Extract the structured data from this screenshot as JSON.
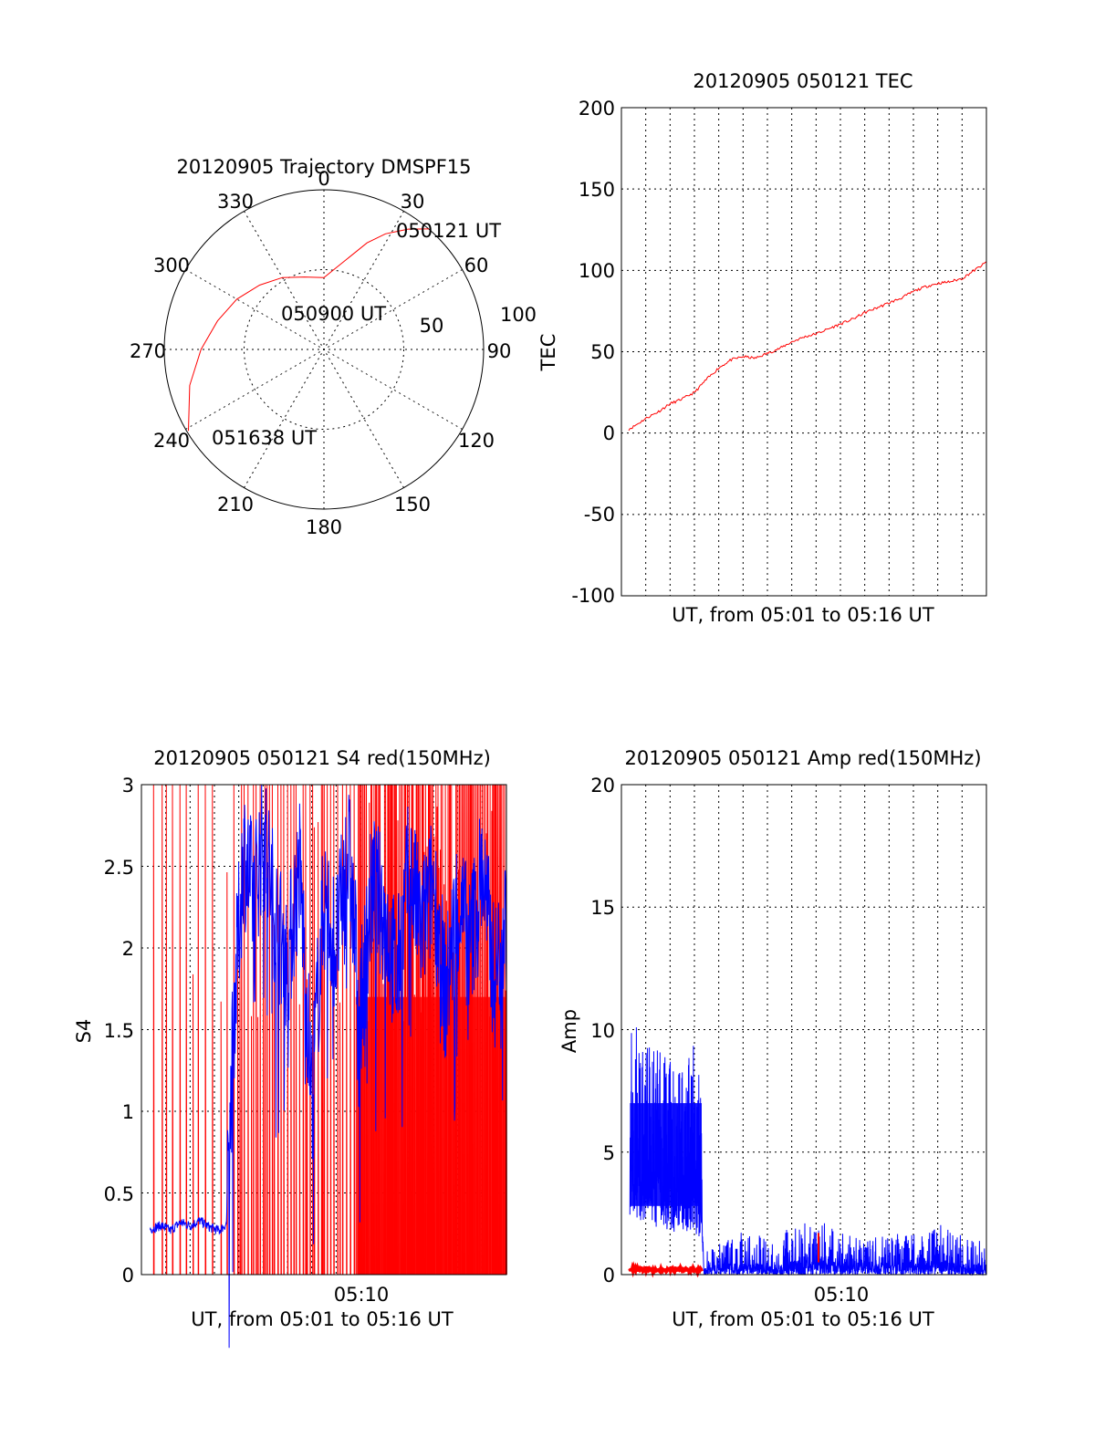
{
  "colors": {
    "red": "#ff0000",
    "blue": "#0000ff",
    "axes": "#000000",
    "background": "#ffffff"
  },
  "chart_data": [
    {
      "type": "polar",
      "title": "20120905 Trajectory DMSPF15",
      "azimuth_labels": [
        "0",
        "30",
        "60",
        "90",
        "120",
        "150",
        "180",
        "210",
        "240",
        "270",
        "300",
        "330"
      ],
      "radial_labels": [
        "50",
        "100"
      ],
      "rlim": [
        0,
        100
      ],
      "grid": true,
      "series": [
        {
          "color": "red",
          "azimuth_deg": [
            41,
            35,
            28,
            22,
            0,
            345,
            330,
            315,
            300,
            285,
            270,
            255,
            239
          ],
          "radius": [
            100,
            92,
            82,
            72,
            45,
            47,
            52,
            57,
            63,
            69,
            77,
            87,
            99
          ]
        }
      ],
      "annotations": [
        {
          "text": "050121 UT",
          "azimuth_deg": 41,
          "radius": 100
        },
        {
          "text": "050900 UT",
          "azimuth_deg": 0,
          "radius": 45
        },
        {
          "text": "051638 UT",
          "azimuth_deg": 239,
          "radius": 99
        }
      ]
    },
    {
      "type": "line",
      "title": "20120905 050121 TEC",
      "xlabel": "UT, from 05:01 to 05:16 UT",
      "ylabel": "TEC",
      "ylim": [
        -100,
        200
      ],
      "yticks": [
        "200",
        "150",
        "100",
        "50",
        "0",
        "-50",
        "-100"
      ],
      "xlim": [
        0,
        15
      ],
      "x_unit": "minutes after 05:01 UT",
      "grid": true,
      "series": [
        {
          "color": "red",
          "x": [
            0,
            0.5,
            1,
            1.5,
            2,
            2.5,
            3,
            3.5,
            4,
            4.5,
            5,
            5.5,
            6,
            6.5,
            7,
            7.5,
            8,
            8.5,
            9,
            9.5,
            10,
            10.5,
            11,
            11.5,
            12,
            12.5,
            13,
            13.5,
            14,
            14.5,
            15
          ],
          "values": [
            0,
            4,
            9,
            13,
            18,
            21,
            25,
            33,
            40,
            45,
            47,
            46,
            49,
            52,
            56,
            59,
            61,
            64,
            67,
            70,
            74,
            77,
            80,
            83,
            87,
            90,
            92,
            93,
            95,
            100,
            105
          ]
        }
      ]
    },
    {
      "type": "line",
      "title": "20120905 050121 S4 red(150MHz)",
      "xlabel": "UT, from 05:01 to 05:16 UT",
      "ylabel": "S4",
      "ylim": [
        0,
        3
      ],
      "yticks": [
        "3",
        "2.5",
        "2",
        "1.5",
        "1",
        "0.5",
        "0"
      ],
      "xtick_labels": [
        "05:10"
      ],
      "xlim": [
        0,
        15
      ],
      "x_unit": "minutes after 05:01 UT",
      "grid": true,
      "series": [
        {
          "color": "red",
          "style": "dense vertical spikes between 0 and above 3",
          "x": [
            0.6,
            1.0,
            1.4,
            1.9,
            2.4,
            2.7,
            3.2,
            3.6,
            4.1,
            4.5,
            5.0,
            5.5,
            6.0,
            6.4,
            7.0,
            7.5,
            8.0,
            8.5,
            9.0,
            9.5,
            10.0,
            10.5,
            11.0,
            11.5,
            12.0,
            12.5,
            13.0,
            13.5,
            14.0,
            14.5
          ],
          "values": [
            3,
            3,
            3,
            3,
            3,
            3,
            3,
            3,
            3,
            3,
            3,
            3,
            3,
            3,
            3,
            3,
            3,
            3,
            3,
            3,
            3,
            3,
            3,
            3,
            3,
            3,
            3,
            3,
            3,
            3
          ]
        },
        {
          "color": "blue",
          "x": [
            0.4,
            0.8,
            1.2,
            1.6,
            2.0,
            2.4,
            2.8,
            3.2,
            3.5,
            3.8,
            4.2,
            4.6,
            5.0,
            5.5,
            6.0,
            6.5,
            7.0,
            7.5,
            8.0,
            8.5,
            9.0,
            9.5,
            10.0,
            10.5,
            11.0,
            11.5,
            12.0,
            12.5,
            13.0,
            13.5,
            14.0,
            14.5,
            15.0
          ],
          "values": [
            0.28,
            0.3,
            0.27,
            0.32,
            0.3,
            0.33,
            0.29,
            0.27,
            0.31,
            1.6,
            2.6,
            2.3,
            2.7,
            2.2,
            1.9,
            2.5,
            1.1,
            2.3,
            2.0,
            2.6,
            1.6,
            2.4,
            2.2,
            1.8,
            2.5,
            2.1,
            2.4,
            1.7,
            2.3,
            2.0,
            2.5,
            1.8,
            2.2
          ]
        }
      ]
    },
    {
      "type": "line",
      "title": "20120905 050121 Amp red(150MHz)",
      "xlabel": "UT, from 05:01 to 05:16 UT",
      "ylabel": "Amp",
      "ylim": [
        0,
        20
      ],
      "yticks": [
        "20",
        "15",
        "10",
        "5",
        "0"
      ],
      "xtick_labels": [
        "05:10"
      ],
      "xlim": [
        0,
        15
      ],
      "x_unit": "minutes after 05:01 UT",
      "grid": true,
      "series": [
        {
          "color": "red",
          "x": [
            0,
            1,
            2,
            3,
            3.3
          ],
          "values": [
            0.2,
            0.2,
            0.2,
            0.2,
            0.2
          ],
          "spike": {
            "x": 8.1,
            "value": 1.7
          }
        },
        {
          "color": "blue",
          "style": "noisy band",
          "x": [
            0,
            0.5,
            1,
            1.5,
            2,
            2.5,
            3,
            3.3,
            3.4,
            4,
            5,
            6,
            7,
            8,
            9,
            10,
            11,
            12,
            13,
            14,
            15
          ],
          "upper": [
            9.0,
            10.5,
            9.2,
            9.5,
            8.9,
            8.7,
            9.4,
            7.5,
            1.0,
            1.4,
            1.8,
            1.6,
            1.9,
            2.3,
            1.7,
            1.5,
            1.6,
            1.8,
            2.1,
            1.6,
            1.4
          ],
          "lower": [
            2.6,
            2.3,
            2.1,
            1.9,
            1.8,
            1.6,
            1.5,
            1.4,
            0.0,
            0.0,
            0.0,
            0.0,
            0.0,
            0.0,
            0.0,
            0.0,
            0.0,
            0.0,
            0.0,
            0.0,
            0.0
          ]
        }
      ]
    }
  ]
}
